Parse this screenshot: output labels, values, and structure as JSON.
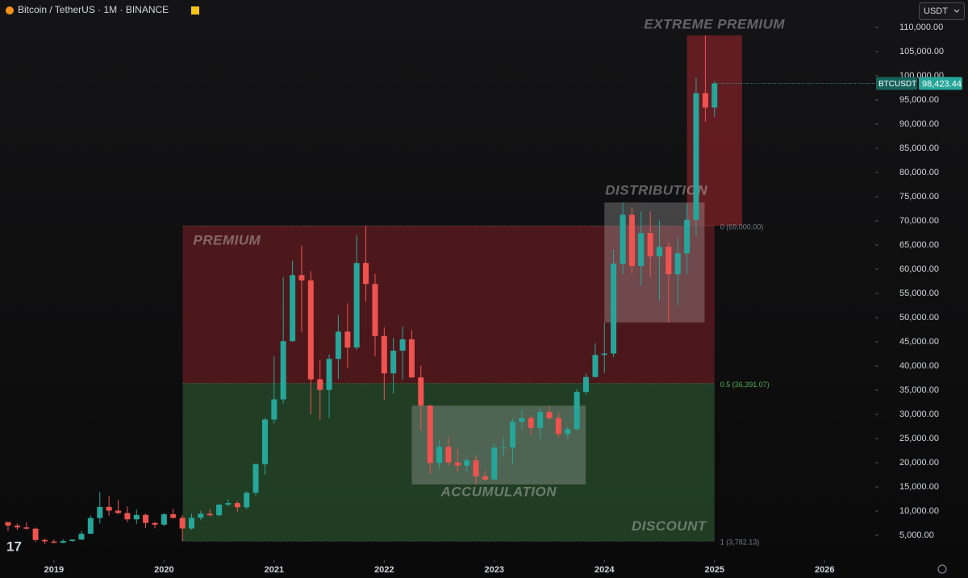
{
  "header": {
    "symbol": "Bitcoin / TetherUS · 1M · BINANCE",
    "currency": "USDT"
  },
  "chart_data": {
    "type": "candlestick",
    "x": [
      2018.583,
      2018.667,
      2018.75,
      2018.833,
      2018.917,
      2019,
      2019.083,
      2019.167,
      2019.25,
      2019.333,
      2019.417,
      2019.5,
      2019.583,
      2019.667,
      2019.75,
      2019.833,
      2019.917,
      2020,
      2020.083,
      2020.167,
      2020.25,
      2020.333,
      2020.417,
      2020.5,
      2020.583,
      2020.667,
      2020.75,
      2020.833,
      2020.917,
      2021,
      2021.083,
      2021.167,
      2021.25,
      2021.333,
      2021.417,
      2021.5,
      2021.583,
      2021.667,
      2021.75,
      2021.833,
      2021.917,
      2022,
      2022.083,
      2022.167,
      2022.25,
      2022.333,
      2022.417,
      2022.5,
      2022.583,
      2022.667,
      2022.75,
      2022.833,
      2022.917,
      2023,
      2023.083,
      2023.167,
      2023.25,
      2023.333,
      2023.417,
      2023.5,
      2023.583,
      2023.667,
      2023.75,
      2023.833,
      2023.917,
      2024,
      2024.083,
      2024.167,
      2024.25,
      2024.333,
      2024.417,
      2024.5,
      2024.583,
      2024.667,
      2024.75,
      2024.833,
      2024.917,
      2025
    ],
    "open": [
      7730,
      7010,
      6630,
      6370,
      4040,
      3700,
      3440,
      3820,
      4100,
      5320,
      8560,
      10860,
      10090,
      9600,
      8290,
      9200,
      7550,
      7200,
      9350,
      8600,
      6410,
      8620,
      9450,
      9140,
      11350,
      11650,
      10780,
      13790,
      19700,
      28920,
      33090,
      45140,
      58790,
      57700,
      37250,
      35040,
      41460,
      47100,
      43820,
      61300,
      56950,
      46200,
      38470,
      43160,
      45510,
      37630,
      31800,
      19940,
      23300,
      20050,
      19420,
      20490,
      17160,
      16540,
      23130,
      23140,
      28470,
      29230,
      27210,
      30470,
      29230,
      25940,
      26960,
      34640,
      37720,
      42280,
      42580,
      61130,
      71280,
      60670,
      67490,
      62680,
      64630,
      58970,
      63300,
      70220,
      96410,
      93430
    ],
    "high": [
      7750,
      7410,
      7680,
      6600,
      4310,
      4140,
      4200,
      4140,
      5900,
      9100,
      13970,
      13150,
      12330,
      10950,
      10370,
      9510,
      7750,
      9580,
      10500,
      9190,
      9460,
      10070,
      10380,
      11440,
      12470,
      12070,
      14100,
      19860,
      29300,
      41950,
      58350,
      61780,
      64850,
      59600,
      41330,
      42400,
      50500,
      52920,
      67000,
      69000,
      59050,
      47990,
      45820,
      48190,
      47440,
      40050,
      31980,
      24670,
      25210,
      22800,
      20990,
      21480,
      18390,
      23960,
      25250,
      29180,
      31000,
      29820,
      31390,
      31800,
      30230,
      27480,
      35200,
      38450,
      44700,
      48970,
      64000,
      73780,
      72800,
      71980,
      71950,
      70080,
      65600,
      66500,
      73620,
      99590,
      108350,
      98900
    ],
    "low": [
      5880,
      6100,
      6200,
      3650,
      3160,
      3350,
      3390,
      3660,
      4050,
      5280,
      7450,
      9040,
      9320,
      7710,
      7300,
      6520,
      6440,
      6870,
      8450,
      3780,
      6150,
      8110,
      8830,
      8890,
      10930,
      9880,
      10370,
      13200,
      17570,
      28130,
      32300,
      44950,
      47040,
      30000,
      28800,
      29280,
      37330,
      39600,
      43280,
      53260,
      42000,
      32900,
      34320,
      37150,
      37580,
      26700,
      17620,
      18780,
      19520,
      18120,
      18190,
      15480,
      16260,
      16500,
      21350,
      19550,
      26940,
      25810,
      24800,
      28860,
      25170,
      24900,
      26540,
      34100,
      37620,
      38560,
      41880,
      59000,
      59190,
      56550,
      58400,
      53490,
      49000,
      52550,
      58900,
      66830,
      90500,
      91500
    ],
    "close": [
      7010,
      6630,
      6370,
      4040,
      3740,
      3440,
      3820,
      4100,
      5320,
      8560,
      10860,
      10090,
      9600,
      8290,
      9200,
      7550,
      7200,
      9350,
      8600,
      6410,
      8620,
      9450,
      9140,
      11350,
      11650,
      10780,
      13790,
      19700,
      28920,
      33090,
      45140,
      58790,
      57700,
      37250,
      35040,
      41460,
      47100,
      43820,
      61300,
      56950,
      46200,
      38470,
      43160,
      45510,
      37630,
      31800,
      19940,
      23300,
      20050,
      19420,
      20490,
      17160,
      16540,
      23130,
      23140,
      28470,
      29230,
      27210,
      30470,
      29230,
      25940,
      26960,
      34640,
      37720,
      42280,
      42580,
      61130,
      71280,
      60670,
      67490,
      62680,
      64630,
      58970,
      63300,
      70220,
      96410,
      93430,
      98423.44
    ],
    "up_color": "#26a69a",
    "down_color": "#ef5350",
    "xlim": [
      2018.51,
      2026.46
    ],
    "xticks": [
      2019,
      2020,
      2021,
      2022,
      2023,
      2024,
      2025,
      2026
    ],
    "ylim": [
      -167,
      115667
    ],
    "yticks": [
      {
        "value": 5000,
        "label": "5,000.00"
      },
      {
        "value": 10000,
        "label": "10,000.00"
      },
      {
        "value": 15000,
        "label": "15,000.00"
      },
      {
        "value": 20000,
        "label": "20,000.00"
      },
      {
        "value": 25000,
        "label": "25,000.00"
      },
      {
        "value": 30000,
        "label": "30,000.00"
      },
      {
        "value": 35000,
        "label": "35,000.00"
      },
      {
        "value": 40000,
        "label": "40,000.00"
      },
      {
        "value": 45000,
        "label": "45,000.00"
      },
      {
        "value": 50000,
        "label": "50,000.00"
      },
      {
        "value": 55000,
        "label": "55,000.00"
      },
      {
        "value": 60000,
        "label": "60,000.00"
      },
      {
        "value": 65000,
        "label": "65,000.00"
      },
      {
        "value": 70000,
        "label": "70,000.00"
      },
      {
        "value": 75000,
        "label": "75,000.00"
      },
      {
        "value": 80000,
        "label": "80,000.00"
      },
      {
        "value": 85000,
        "label": "85,000.00"
      },
      {
        "value": 90000,
        "label": "90,000.00"
      },
      {
        "value": 95000,
        "label": "95,000.00"
      },
      {
        "value": 100000,
        "label": "100,000.00"
      },
      {
        "value": 105000,
        "label": "105,000.00"
      },
      {
        "value": 110000,
        "label": "110,000.00"
      }
    ],
    "last_price": {
      "symbol": "BTCUSDT",
      "value": 98423.44,
      "label": "98,423.44",
      "color": "#26a69a"
    },
    "levels": [
      {
        "value": 69000,
        "label": "0 (69,000.00)",
        "color": "#787b86"
      },
      {
        "value": 36391.07,
        "label": "0.5 (36,391.07)",
        "color": "#4caf50"
      },
      {
        "value": 3782.13,
        "label": "1 (3,782.13)",
        "color": "#787b86"
      }
    ],
    "zones": [
      {
        "label": "PREMIUM",
        "x": [
          2020.17,
          2025.0
        ],
        "y": [
          36391.07,
          69000
        ],
        "color": "rgba(178,40,48,0.38)",
        "anchor": "top-left"
      },
      {
        "label": "DISCOUNT",
        "x": [
          2020.17,
          2025.0
        ],
        "y": [
          3782.13,
          36391.07
        ],
        "color": "rgba(56,118,62,0.48)",
        "anchor": "bottom-right"
      },
      {
        "label": "EXTREME PREMIUM",
        "x": [
          2024.75,
          2025.25
        ],
        "y": [
          69000,
          108350
        ],
        "color": "rgba(178,40,48,0.5)",
        "anchor": "above-center"
      },
      {
        "label": "DISTRIBUTION",
        "x": [
          2024.0,
          2024.91
        ],
        "y": [
          49000,
          73800
        ],
        "color": "rgba(200,200,200,0.28)",
        "anchor": "above-left"
      },
      {
        "label": "ACCUMULATION",
        "x": [
          2022.25,
          2023.83
        ],
        "y": [
          15500,
          31800
        ],
        "color": "rgba(200,200,200,0.28)",
        "anchor": "below-center"
      }
    ]
  }
}
